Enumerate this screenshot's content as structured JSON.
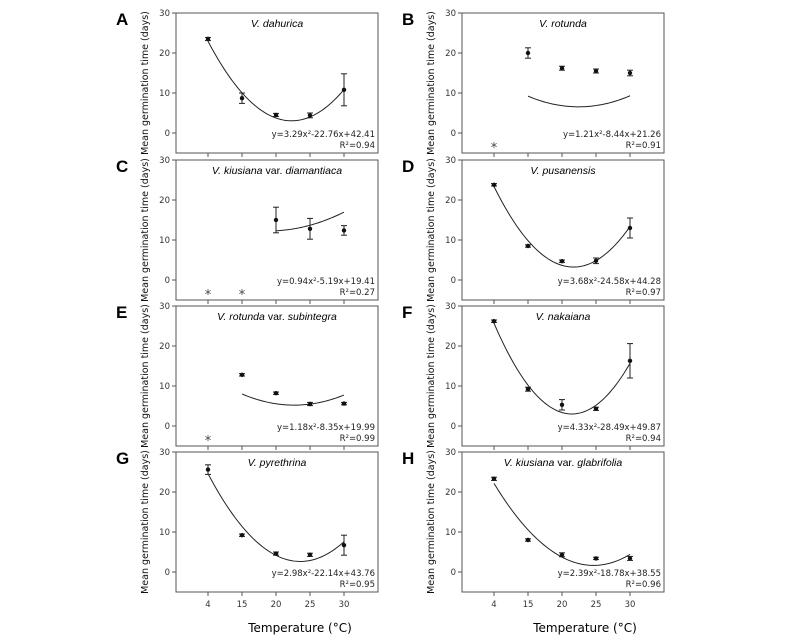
{
  "figure": {
    "xlabel": "Temperature (°C)",
    "ylabel": "Mean germination time (days)"
  },
  "chart_data": [
    {
      "type": "scatter",
      "letter": "A",
      "species": "V. dahurica",
      "variety_word": "",
      "variety": "",
      "x_categories": [
        4,
        15,
        20,
        25,
        30
      ],
      "xticks": [
        "4",
        "15",
        "20",
        "25",
        "30"
      ],
      "ylim": [
        -5,
        30
      ],
      "yticks": [
        0,
        10,
        20,
        30
      ],
      "points": [
        {
          "x": 4,
          "y": 23.5,
          "err": 0.4
        },
        {
          "x": 15,
          "y": 8.7,
          "err": 1.3
        },
        {
          "x": 20,
          "y": 4.5,
          "err": 0.4
        },
        {
          "x": 25,
          "y": 4.4,
          "err": 0.6
        },
        {
          "x": 30,
          "y": 10.8,
          "err": 4.0
        }
      ],
      "asterisks": [],
      "fit": {
        "a": 3.29,
        "b": -22.76,
        "c": 42.41
      },
      "equation": "y=3.29x²-22.76x+42.41",
      "r2_label": "R²=0.94"
    },
    {
      "type": "scatter",
      "letter": "B",
      "species": "V. rotunda",
      "variety_word": "",
      "variety": "",
      "x_categories": [
        4,
        15,
        20,
        25,
        30
      ],
      "xticks": [
        "4",
        "15",
        "20",
        "25",
        "30"
      ],
      "ylim": [
        -5,
        30
      ],
      "yticks": [
        0,
        10,
        20,
        30
      ],
      "points": [
        {
          "x": 15,
          "y": 20.0,
          "err": 1.3
        },
        {
          "x": 20,
          "y": 16.2,
          "err": 0.5
        },
        {
          "x": 25,
          "y": 15.5,
          "err": 0.5
        },
        {
          "x": 30,
          "y": 15.0,
          "err": 0.7
        }
      ],
      "asterisks": [
        4
      ],
      "fit": {
        "a": 1.21,
        "b": -8.44,
        "c": 21.26
      },
      "equation": "y=1.21x²-8.44x+21.26",
      "r2_label": "R²=0.91"
    },
    {
      "type": "scatter",
      "letter": "C",
      "species": "V. kiusiana",
      "variety_word": "var.",
      "variety": "diamantiaca",
      "x_categories": [
        4,
        15,
        20,
        25,
        30
      ],
      "xticks": [
        "4",
        "15",
        "20",
        "25",
        "30"
      ],
      "ylim": [
        -5,
        30
      ],
      "yticks": [
        0,
        10,
        20,
        30
      ],
      "points": [
        {
          "x": 20,
          "y": 15.0,
          "err": 3.2
        },
        {
          "x": 25,
          "y": 12.8,
          "err": 2.6
        },
        {
          "x": 30,
          "y": 12.4,
          "err": 1.2
        }
      ],
      "asterisks": [
        4,
        15
      ],
      "fit": {
        "a": 0.94,
        "b": -5.19,
        "c": 19.41
      },
      "equation": "y=0.94x²-5.19x+19.41",
      "r2_label": "R²=0.27"
    },
    {
      "type": "scatter",
      "letter": "D",
      "species": "V. pusanensis",
      "variety_word": "",
      "variety": "",
      "x_categories": [
        4,
        15,
        20,
        25,
        30
      ],
      "xticks": [
        "4",
        "15",
        "20",
        "25",
        "30"
      ],
      "ylim": [
        -5,
        30
      ],
      "yticks": [
        0,
        10,
        20,
        30
      ],
      "points": [
        {
          "x": 4,
          "y": 23.8,
          "err": 0.3
        },
        {
          "x": 15,
          "y": 8.5,
          "err": 0.3
        },
        {
          "x": 20,
          "y": 4.7,
          "err": 0.3
        },
        {
          "x": 25,
          "y": 4.8,
          "err": 0.7
        },
        {
          "x": 30,
          "y": 13.0,
          "err": 2.5
        }
      ],
      "asterisks": [],
      "fit": {
        "a": 3.68,
        "b": -24.58,
        "c": 44.28
      },
      "equation": "y=3.68x²-24.58x+44.28",
      "r2_label": "R²=0.97"
    },
    {
      "type": "scatter",
      "letter": "E",
      "species": "V. rotunda",
      "variety_word": "var.",
      "variety": "subintegra",
      "x_categories": [
        4,
        15,
        20,
        25,
        30
      ],
      "xticks": [
        "4",
        "15",
        "20",
        "25",
        "30"
      ],
      "ylim": [
        -5,
        30
      ],
      "yticks": [
        0,
        10,
        20,
        30
      ],
      "points": [
        {
          "x": 15,
          "y": 12.8,
          "err": 0.3
        },
        {
          "x": 20,
          "y": 8.2,
          "err": 0.3
        },
        {
          "x": 25,
          "y": 5.5,
          "err": 0.4
        },
        {
          "x": 30,
          "y": 5.6,
          "err": 0.3
        }
      ],
      "asterisks": [
        4
      ],
      "fit": {
        "a": 1.18,
        "b": -8.35,
        "c": 19.99
      },
      "equation": "y=1.18x²-8.35x+19.99",
      "r2_label": "R²=0.99"
    },
    {
      "type": "scatter",
      "letter": "F",
      "species": "V. nakaiana",
      "variety_word": "",
      "variety": "",
      "x_categories": [
        4,
        15,
        20,
        25,
        30
      ],
      "xticks": [
        "4",
        "15",
        "20",
        "25",
        "30"
      ],
      "ylim": [
        -5,
        30
      ],
      "yticks": [
        0,
        10,
        20,
        30
      ],
      "points": [
        {
          "x": 4,
          "y": 26.2,
          "err": 0.3
        },
        {
          "x": 15,
          "y": 9.2,
          "err": 0.5
        },
        {
          "x": 20,
          "y": 5.3,
          "err": 1.3
        },
        {
          "x": 25,
          "y": 4.3,
          "err": 0.4
        },
        {
          "x": 30,
          "y": 16.3,
          "err": 4.3
        }
      ],
      "asterisks": [],
      "fit": {
        "a": 4.33,
        "b": -28.49,
        "c": 49.87
      },
      "equation": "y=4.33x²-28.49x+49.87",
      "r2_label": "R²=0.94"
    },
    {
      "type": "scatter",
      "letter": "G",
      "species": "V. pyrethrina",
      "variety_word": "",
      "variety": "",
      "x_categories": [
        4,
        15,
        20,
        25,
        30
      ],
      "xticks": [
        "4",
        "15",
        "20",
        "25",
        "30"
      ],
      "ylim": [
        -5,
        30
      ],
      "yticks": [
        0,
        10,
        20,
        30
      ],
      "points": [
        {
          "x": 4,
          "y": 25.6,
          "err": 1.2
        },
        {
          "x": 15,
          "y": 9.2,
          "err": 0.3
        },
        {
          "x": 20,
          "y": 4.6,
          "err": 0.4
        },
        {
          "x": 25,
          "y": 4.3,
          "err": 0.4
        },
        {
          "x": 30,
          "y": 6.7,
          "err": 2.5
        }
      ],
      "asterisks": [],
      "fit": {
        "a": 2.98,
        "b": -22.14,
        "c": 43.76
      },
      "equation": "y=2.98x²-22.14x+43.76",
      "r2_label": "R²=0.95"
    },
    {
      "type": "scatter",
      "letter": "H",
      "species": "V. kiusiana",
      "variety_word": "var.",
      "variety": "glabrifolia",
      "x_categories": [
        4,
        15,
        20,
        25,
        30
      ],
      "xticks": [
        "4",
        "15",
        "20",
        "25",
        "30"
      ],
      "ylim": [
        -5,
        30
      ],
      "yticks": [
        0,
        10,
        20,
        30
      ],
      "points": [
        {
          "x": 4,
          "y": 23.3,
          "err": 0.4
        },
        {
          "x": 15,
          "y": 8.0,
          "err": 0.3
        },
        {
          "x": 20,
          "y": 4.3,
          "err": 0.5
        },
        {
          "x": 25,
          "y": 3.4,
          "err": 0.3
        },
        {
          "x": 30,
          "y": 3.4,
          "err": 0.5
        }
      ],
      "asterisks": [],
      "fit": {
        "a": 2.39,
        "b": -18.78,
        "c": 38.55
      },
      "equation": "y=2.39x²-18.78x+38.55",
      "r2_label": "R²=0.96"
    }
  ]
}
